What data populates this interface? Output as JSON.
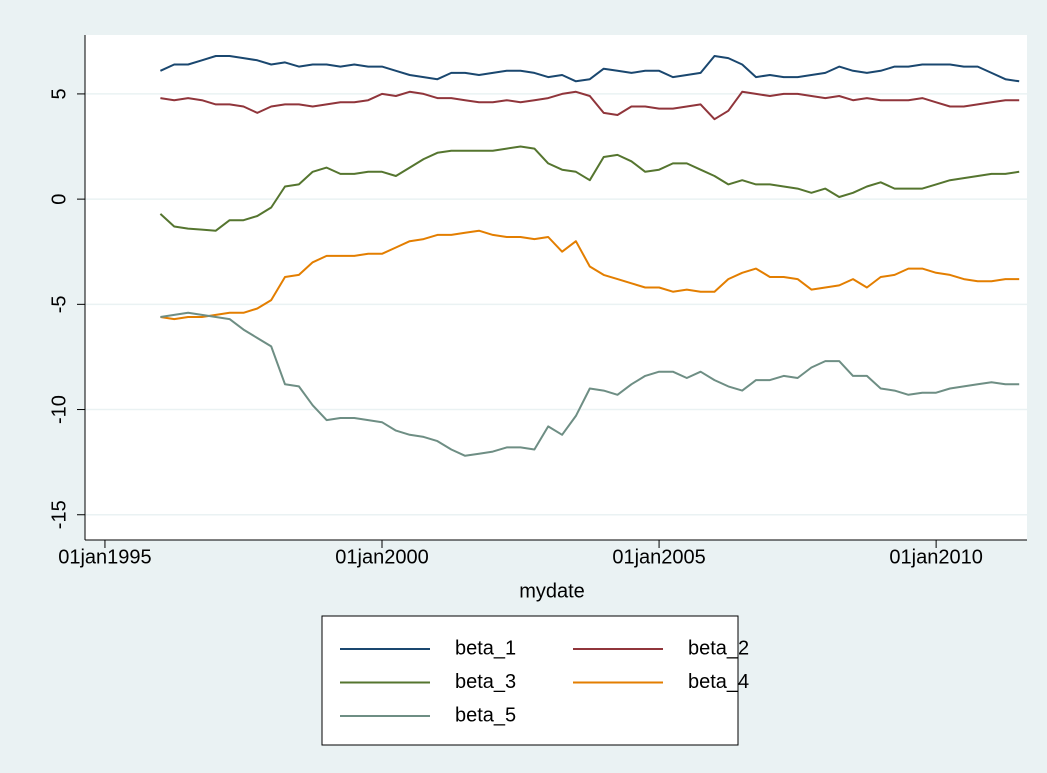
{
  "chart_data": {
    "type": "line",
    "x_label": "mydate",
    "x": [
      1996,
      1996.25,
      1996.5,
      1996.75,
      1997,
      1997.25,
      1997.5,
      1997.75,
      1998,
      1998.25,
      1998.5,
      1998.75,
      1999,
      1999.25,
      1999.5,
      1999.75,
      2000,
      2000.25,
      2000.5,
      2000.75,
      2001,
      2001.25,
      2001.5,
      2001.75,
      2002,
      2002.25,
      2002.5,
      2002.75,
      2003,
      2003.25,
      2003.5,
      2003.75,
      2004,
      2004.25,
      2004.5,
      2004.75,
      2005,
      2005.25,
      2005.5,
      2005.75,
      2006,
      2006.25,
      2006.5,
      2006.75,
      2007,
      2007.25,
      2007.5,
      2007.75,
      2008,
      2008.25,
      2008.5,
      2008.75,
      2009,
      2009.25,
      2009.5,
      2009.75,
      2010,
      2010.25,
      2010.5,
      2010.75,
      2011,
      2011.25,
      2011.5
    ],
    "series": [
      {
        "name": "beta_1",
        "color": "#1a476f",
        "values": [
          6.1,
          6.4,
          6.4,
          6.6,
          6.8,
          6.8,
          6.7,
          6.6,
          6.4,
          6.5,
          6.3,
          6.4,
          6.4,
          6.3,
          6.4,
          6.3,
          6.3,
          6.1,
          5.9,
          5.8,
          5.7,
          6.0,
          6.0,
          5.9,
          6.0,
          6.1,
          6.1,
          6.0,
          5.8,
          5.9,
          5.6,
          5.7,
          6.2,
          6.1,
          6.0,
          6.1,
          6.1,
          5.8,
          5.9,
          6.0,
          6.8,
          6.7,
          6.4,
          5.8,
          5.9,
          5.8,
          5.8,
          5.9,
          6.0,
          6.3,
          6.1,
          6.0,
          6.1,
          6.3,
          6.3,
          6.4,
          6.4,
          6.4,
          6.3,
          6.3,
          6.0,
          5.7,
          5.6
        ]
      },
      {
        "name": "beta_2",
        "color": "#90353b",
        "values": [
          4.8,
          4.7,
          4.8,
          4.7,
          4.5,
          4.5,
          4.4,
          4.1,
          4.4,
          4.5,
          4.5,
          4.4,
          4.5,
          4.6,
          4.6,
          4.7,
          5.0,
          4.9,
          5.1,
          5.0,
          4.8,
          4.8,
          4.7,
          4.6,
          4.6,
          4.7,
          4.6,
          4.7,
          4.8,
          5.0,
          5.1,
          4.9,
          4.1,
          4.0,
          4.4,
          4.4,
          4.3,
          4.3,
          4.4,
          4.5,
          3.8,
          4.2,
          5.1,
          5.0,
          4.9,
          5.0,
          5.0,
          4.9,
          4.8,
          4.9,
          4.7,
          4.8,
          4.7,
          4.7,
          4.7,
          4.8,
          4.6,
          4.4,
          4.4,
          4.5,
          4.6,
          4.7,
          4.7
        ]
      },
      {
        "name": "beta_3",
        "color": "#55752f",
        "values": [
          -0.7,
          -1.3,
          -1.4,
          -1.45,
          -1.5,
          -1.0,
          -1.0,
          -0.8,
          -0.4,
          0.6,
          0.7,
          1.3,
          1.5,
          1.2,
          1.2,
          1.3,
          1.3,
          1.1,
          1.5,
          1.9,
          2.2,
          2.3,
          2.3,
          2.3,
          2.3,
          2.4,
          2.5,
          2.4,
          1.7,
          1.4,
          1.3,
          0.9,
          2.0,
          2.1,
          1.8,
          1.3,
          1.4,
          1.7,
          1.7,
          1.4,
          1.1,
          0.7,
          0.9,
          0.7,
          0.7,
          0.6,
          0.5,
          0.3,
          0.5,
          0.1,
          0.3,
          0.6,
          0.8,
          0.5,
          0.5,
          0.5,
          0.7,
          0.9,
          1.0,
          1.1,
          1.2,
          1.2,
          1.3
        ]
      },
      {
        "name": "beta_4",
        "color": "#e37e00",
        "values": [
          -5.6,
          -5.7,
          -5.6,
          -5.6,
          -5.5,
          -5.4,
          -5.4,
          -5.2,
          -4.8,
          -3.7,
          -3.6,
          -3.0,
          -2.7,
          -2.7,
          -2.7,
          -2.6,
          -2.6,
          -2.3,
          -2.0,
          -1.9,
          -1.7,
          -1.7,
          -1.6,
          -1.5,
          -1.7,
          -1.8,
          -1.8,
          -1.9,
          -1.8,
          -2.5,
          -2.0,
          -3.2,
          -3.6,
          -3.8,
          -4.0,
          -4.2,
          -4.2,
          -4.4,
          -4.3,
          -4.4,
          -4.4,
          -3.8,
          -3.5,
          -3.3,
          -3.7,
          -3.7,
          -3.8,
          -4.3,
          -4.2,
          -4.1,
          -3.8,
          -4.2,
          -3.7,
          -3.6,
          -3.3,
          -3.3,
          -3.5,
          -3.6,
          -3.8,
          -3.9,
          -3.9,
          -3.8,
          -3.8
        ]
      },
      {
        "name": "beta_5",
        "color": "#6e8e84",
        "values": [
          -5.6,
          -5.5,
          -5.4,
          -5.5,
          -5.6,
          -5.7,
          -6.2,
          -6.6,
          -7.0,
          -8.8,
          -8.9,
          -9.8,
          -10.5,
          -10.4,
          -10.4,
          -10.5,
          -10.6,
          -11.0,
          -11.2,
          -11.3,
          -11.5,
          -11.9,
          -12.2,
          -12.1,
          -12.0,
          -11.8,
          -11.8,
          -11.9,
          -10.8,
          -11.2,
          -10.3,
          -9.0,
          -9.1,
          -9.3,
          -8.8,
          -8.4,
          -8.2,
          -8.2,
          -8.5,
          -8.2,
          -8.6,
          -8.9,
          -9.1,
          -8.6,
          -8.6,
          -8.4,
          -8.5,
          -8.0,
          -7.7,
          -7.7,
          -8.4,
          -8.4,
          -9.0,
          -9.1,
          -9.3,
          -9.2,
          -9.2,
          -9.0,
          -8.9,
          -8.8,
          -8.7,
          -8.8,
          -8.8
        ]
      }
    ],
    "xlim": [
      1994.64,
      2011.64
    ],
    "xticks": [
      {
        "value": 1995,
        "label": "01jan1995"
      },
      {
        "value": 2000,
        "label": "01jan2000"
      },
      {
        "value": 2005,
        "label": "01jan2005"
      },
      {
        "value": 2010,
        "label": "01jan2010"
      }
    ],
    "ylim": [
      -16.2,
      7.8
    ],
    "yticks": [
      -15,
      -10,
      -5,
      0,
      5
    ],
    "grid": true
  }
}
